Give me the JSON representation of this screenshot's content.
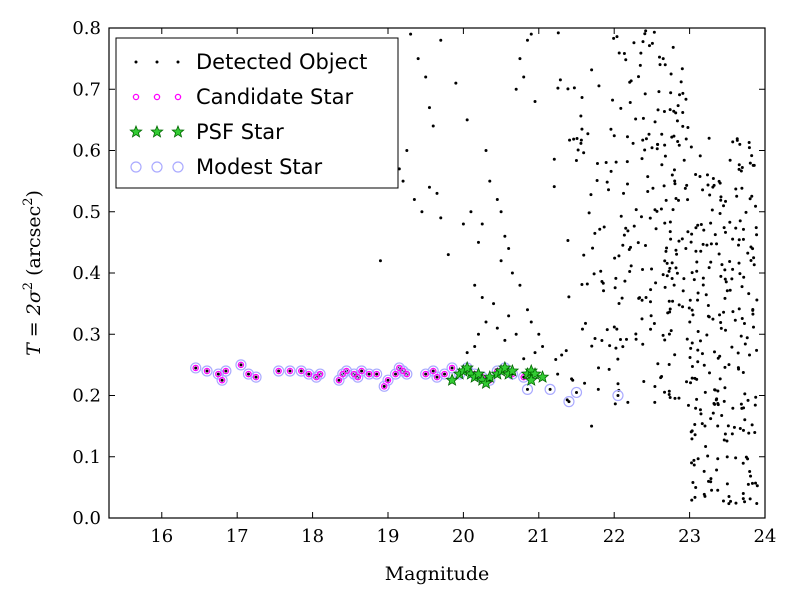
{
  "chart_data": {
    "type": "scatter",
    "title": "",
    "xlabel": "Magnitude",
    "ylabel_parts": {
      "prefix": "T = 2σ",
      "sup1": "2",
      "middle": " (arcsec",
      "sup2": "2",
      "suffix": ")"
    },
    "xlim": [
      15.3,
      24.0
    ],
    "ylim": [
      0.0,
      0.8
    ],
    "x_ticks": [
      "16",
      "17",
      "18",
      "19",
      "20",
      "21",
      "22",
      "23",
      "24"
    ],
    "y_ticks": [
      "0.0",
      "0.1",
      "0.2",
      "0.3",
      "0.4",
      "0.5",
      "0.6",
      "0.7",
      "0.8"
    ],
    "grid": false,
    "legend_position": "top-left",
    "series": [
      {
        "name": "Detected Object",
        "marker": "dot",
        "color": "#000000",
        "points": [
          [
            16.45,
            0.245
          ],
          [
            16.6,
            0.24
          ],
          [
            16.75,
            0.235
          ],
          [
            16.8,
            0.225
          ],
          [
            16.85,
            0.24
          ],
          [
            17.05,
            0.25
          ],
          [
            17.15,
            0.235
          ],
          [
            17.25,
            0.23
          ],
          [
            17.55,
            0.24
          ],
          [
            17.7,
            0.24
          ],
          [
            17.85,
            0.24
          ],
          [
            17.95,
            0.235
          ],
          [
            18.05,
            0.23
          ],
          [
            18.1,
            0.235
          ],
          [
            18.35,
            0.225
          ],
          [
            18.4,
            0.235
          ],
          [
            18.45,
            0.24
          ],
          [
            18.55,
            0.235
          ],
          [
            18.6,
            0.23
          ],
          [
            18.65,
            0.24
          ],
          [
            18.75,
            0.235
          ],
          [
            18.85,
            0.235
          ],
          [
            18.95,
            0.215
          ],
          [
            19.0,
            0.225
          ],
          [
            19.1,
            0.235
          ],
          [
            19.15,
            0.245
          ],
          [
            19.2,
            0.24
          ],
          [
            19.25,
            0.235
          ],
          [
            19.5,
            0.235
          ],
          [
            19.6,
            0.24
          ],
          [
            19.65,
            0.23
          ],
          [
            19.75,
            0.235
          ],
          [
            19.85,
            0.245
          ],
          [
            19.95,
            0.235
          ],
          [
            20.05,
            0.245
          ],
          [
            20.15,
            0.235
          ],
          [
            20.25,
            0.23
          ],
          [
            20.35,
            0.225
          ],
          [
            20.45,
            0.24
          ],
          [
            20.55,
            0.245
          ],
          [
            20.65,
            0.235
          ],
          [
            20.8,
            0.23
          ],
          [
            20.85,
            0.21
          ],
          [
            20.95,
            0.24
          ],
          [
            21.05,
            0.23
          ],
          [
            21.15,
            0.21
          ],
          [
            21.25,
            0.235
          ],
          [
            21.4,
            0.19
          ],
          [
            21.5,
            0.205
          ],
          [
            21.45,
            0.225
          ],
          [
            22.05,
            0.2
          ],
          [
            21.7,
            0.15
          ],
          [
            18.9,
            0.42
          ],
          [
            19.3,
            0.79
          ],
          [
            19.4,
            0.75
          ],
          [
            19.5,
            0.72
          ],
          [
            19.55,
            0.67
          ],
          [
            19.6,
            0.64
          ],
          [
            19.7,
            0.78
          ],
          [
            19.25,
            0.6
          ],
          [
            19.35,
            0.52
          ],
          [
            19.45,
            0.5
          ],
          [
            19.55,
            0.54
          ],
          [
            19.65,
            0.53
          ],
          [
            19.7,
            0.49
          ],
          [
            19.2,
            0.55
          ],
          [
            19.15,
            0.57
          ],
          [
            19.8,
            0.43
          ],
          [
            19.9,
            0.71
          ],
          [
            20.05,
            0.65
          ],
          [
            20.1,
            0.5
          ],
          [
            20.2,
            0.45
          ],
          [
            20.25,
            0.48
          ],
          [
            20.3,
            0.6
          ],
          [
            20.35,
            0.55
          ],
          [
            20.45,
            0.52
          ],
          [
            20.5,
            0.5
          ],
          [
            20.55,
            0.46
          ],
          [
            20.6,
            0.44
          ],
          [
            20.7,
            0.7
          ],
          [
            20.75,
            0.75
          ],
          [
            20.8,
            0.72
          ],
          [
            20.85,
            0.78
          ],
          [
            20.9,
            0.79
          ],
          [
            20.95,
            0.68
          ],
          [
            20.0,
            0.48
          ],
          [
            20.15,
            0.38
          ],
          [
            20.25,
            0.36
          ],
          [
            20.4,
            0.35
          ],
          [
            20.5,
            0.42
          ],
          [
            20.65,
            0.4
          ],
          [
            20.75,
            0.38
          ],
          [
            20.85,
            0.34
          ],
          [
            20.9,
            0.32
          ],
          [
            21.0,
            0.3
          ],
          [
            21.05,
            0.28
          ],
          [
            20.95,
            0.27
          ],
          [
            20.8,
            0.26
          ],
          [
            20.7,
            0.3
          ],
          [
            20.6,
            0.33
          ],
          [
            20.55,
            0.29
          ],
          [
            20.45,
            0.31
          ],
          [
            20.3,
            0.32
          ],
          [
            20.2,
            0.3
          ],
          [
            20.15,
            0.28
          ],
          [
            20.05,
            0.27
          ]
        ]
      },
      {
        "name": "Candidate Star",
        "marker": "magenta-circle",
        "color": "#ff00ff",
        "points": [
          [
            16.45,
            0.245
          ],
          [
            16.6,
            0.24
          ],
          [
            16.75,
            0.235
          ],
          [
            16.8,
            0.225
          ],
          [
            16.85,
            0.24
          ],
          [
            17.05,
            0.25
          ],
          [
            17.15,
            0.235
          ],
          [
            17.25,
            0.23
          ],
          [
            17.55,
            0.24
          ],
          [
            17.7,
            0.24
          ],
          [
            17.85,
            0.24
          ],
          [
            17.95,
            0.235
          ],
          [
            18.05,
            0.23
          ],
          [
            18.1,
            0.235
          ],
          [
            18.35,
            0.225
          ],
          [
            18.4,
            0.235
          ],
          [
            18.45,
            0.24
          ],
          [
            18.55,
            0.235
          ],
          [
            18.6,
            0.23
          ],
          [
            18.65,
            0.24
          ],
          [
            18.75,
            0.235
          ],
          [
            18.85,
            0.235
          ],
          [
            18.95,
            0.215
          ],
          [
            19.0,
            0.225
          ],
          [
            19.1,
            0.235
          ],
          [
            19.15,
            0.245
          ],
          [
            19.2,
            0.24
          ],
          [
            19.25,
            0.235
          ],
          [
            19.5,
            0.235
          ],
          [
            19.6,
            0.24
          ],
          [
            19.65,
            0.23
          ],
          [
            19.75,
            0.235
          ],
          [
            19.85,
            0.245
          ],
          [
            19.95,
            0.235
          ],
          [
            20.05,
            0.245
          ],
          [
            20.15,
            0.235
          ],
          [
            20.25,
            0.23
          ],
          [
            20.35,
            0.225
          ],
          [
            20.45,
            0.24
          ],
          [
            20.55,
            0.245
          ],
          [
            20.65,
            0.235
          ],
          [
            20.8,
            0.23
          ]
        ]
      },
      {
        "name": "PSF Star",
        "marker": "green-star",
        "color": "#00aa00",
        "points": [
          [
            19.85,
            0.225
          ],
          [
            19.95,
            0.235
          ],
          [
            20.0,
            0.24
          ],
          [
            20.05,
            0.245
          ],
          [
            20.1,
            0.235
          ],
          [
            20.15,
            0.23
          ],
          [
            20.2,
            0.235
          ],
          [
            20.25,
            0.225
          ],
          [
            20.3,
            0.22
          ],
          [
            20.35,
            0.23
          ],
          [
            20.45,
            0.235
          ],
          [
            20.5,
            0.24
          ],
          [
            20.55,
            0.245
          ],
          [
            20.6,
            0.235
          ],
          [
            20.65,
            0.24
          ],
          [
            20.85,
            0.235
          ],
          [
            20.9,
            0.24
          ],
          [
            20.95,
            0.235
          ],
          [
            21.05,
            0.23
          ],
          [
            20.9,
            0.225
          ]
        ]
      },
      {
        "name": "Modest Star",
        "marker": "blue-ring",
        "color": "#9999ff",
        "points": [
          [
            16.45,
            0.245
          ],
          [
            16.6,
            0.24
          ],
          [
            16.75,
            0.235
          ],
          [
            16.8,
            0.225
          ],
          [
            16.85,
            0.24
          ],
          [
            17.05,
            0.25
          ],
          [
            17.15,
            0.235
          ],
          [
            17.25,
            0.23
          ],
          [
            17.55,
            0.24
          ],
          [
            17.7,
            0.24
          ],
          [
            17.85,
            0.24
          ],
          [
            17.95,
            0.235
          ],
          [
            18.05,
            0.23
          ],
          [
            18.1,
            0.235
          ],
          [
            18.35,
            0.225
          ],
          [
            18.4,
            0.235
          ],
          [
            18.45,
            0.24
          ],
          [
            18.55,
            0.235
          ],
          [
            18.6,
            0.23
          ],
          [
            18.65,
            0.24
          ],
          [
            18.75,
            0.235
          ],
          [
            18.85,
            0.235
          ],
          [
            18.95,
            0.215
          ],
          [
            19.0,
            0.225
          ],
          [
            19.1,
            0.235
          ],
          [
            19.15,
            0.245
          ],
          [
            19.2,
            0.24
          ],
          [
            19.25,
            0.235
          ],
          [
            19.5,
            0.235
          ],
          [
            19.6,
            0.24
          ],
          [
            19.65,
            0.23
          ],
          [
            19.75,
            0.235
          ],
          [
            19.85,
            0.245
          ],
          [
            19.95,
            0.235
          ],
          [
            20.05,
            0.245
          ],
          [
            20.15,
            0.235
          ],
          [
            20.25,
            0.23
          ],
          [
            20.35,
            0.225
          ],
          [
            20.45,
            0.24
          ],
          [
            20.55,
            0.245
          ],
          [
            20.65,
            0.235
          ],
          [
            20.8,
            0.23
          ],
          [
            20.85,
            0.21
          ],
          [
            21.15,
            0.21
          ],
          [
            21.4,
            0.19
          ],
          [
            21.5,
            0.205
          ],
          [
            22.05,
            0.2
          ]
        ]
      }
    ]
  }
}
